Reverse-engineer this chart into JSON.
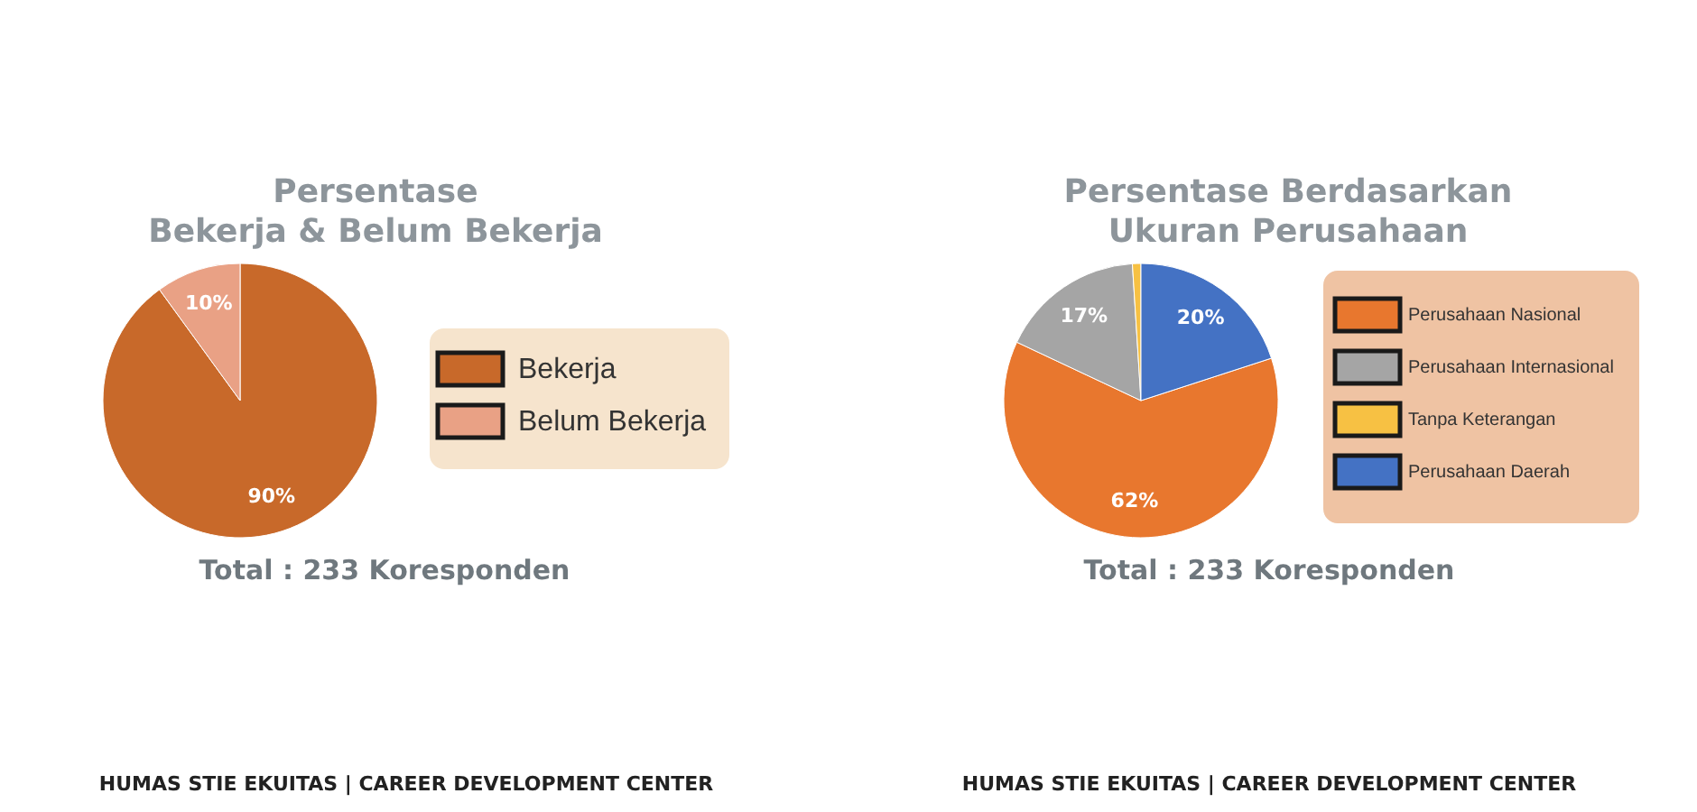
{
  "chart_data": [
    {
      "type": "pie",
      "title": "Persentase\nBekerja & Belum Bekerja",
      "categories": [
        "Bekerja",
        "Belum Bekerja"
      ],
      "values": [
        90,
        10
      ],
      "colors": [
        "#c8692a",
        "#e9a185"
      ],
      "value_labels": [
        "90%",
        "10%"
      ],
      "legend": "right",
      "annotations": [
        "Total : 233 Koresponden",
        "HUMAS STIE EKUITAS | CAREER DEVELOPMENT CENTER"
      ]
    },
    {
      "type": "pie",
      "title": "Persentase Berdasarkan\nUkuran Perusahaan",
      "categories": [
        "Perusahaan Nasional",
        "Perusahaan Internasional",
        "Tanpa Keterangan",
        "Perusahaan Daerah"
      ],
      "values": [
        62,
        17,
        1,
        20
      ],
      "colors": [
        "#e8772e",
        "#a5a5a5",
        "#f7c143",
        "#4472c4"
      ],
      "value_labels": [
        "62%",
        "17%",
        null,
        "20%"
      ],
      "legend": "right",
      "annotations": [
        "Total : 233 Koresponden",
        "HUMAS STIE EKUITAS | CAREER DEVELOPMENT CENTER"
      ]
    }
  ]
}
